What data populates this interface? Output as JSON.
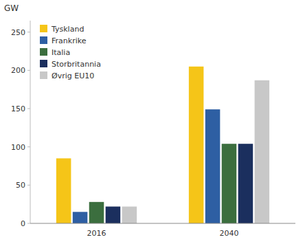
{
  "chart_data": {
    "type": "bar",
    "y_label": "GW",
    "categories": [
      "2016",
      "2040"
    ],
    "series": [
      {
        "name": "Tyskland",
        "color": "#F5C518",
        "values": [
          85,
          205
        ]
      },
      {
        "name": "Frankrike",
        "color": "#2E5FA3",
        "values": [
          15,
          149
        ]
      },
      {
        "name": "Italia",
        "color": "#3B6E3E",
        "values": [
          28,
          104
        ]
      },
      {
        "name": "Storbritannia",
        "color": "#1B2F5E",
        "values": [
          22,
          104
        ]
      },
      {
        "name": "Øvrig EU10",
        "color": "#C8C8C8",
        "values": [
          22,
          187
        ]
      }
    ],
    "ylim": [
      0,
      265
    ],
    "yticks": [
      0,
      50,
      100,
      150,
      200,
      250
    ],
    "grid": false,
    "legend": "upper left"
  }
}
